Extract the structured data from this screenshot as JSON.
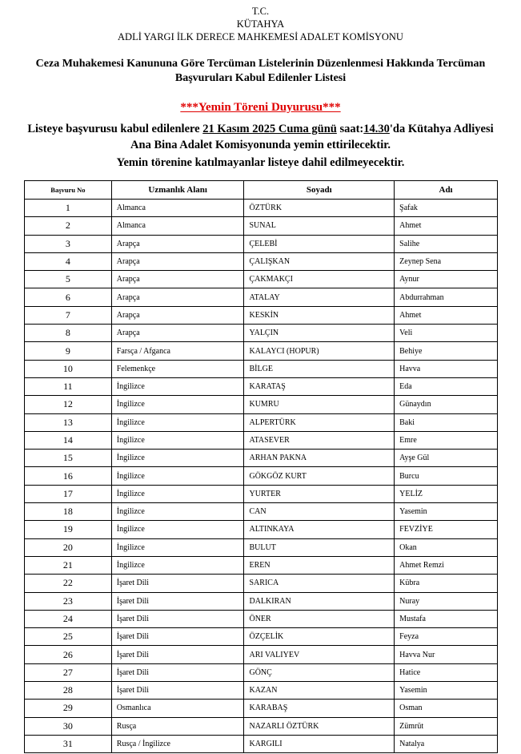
{
  "header": {
    "line1": "T.C.",
    "line2": "KÜTAHYA",
    "line3": "ADLİ YARGI İLK DERECE MAHKEMESİ ADALET KOMİSYONU"
  },
  "title": {
    "line1": "Ceza Muhakemesi Kanununa Göre Tercüman Listelerinin Düzenlenmesi Hakkında Tercüman",
    "line2": "Başvuruları Kabul Edilenler Listesi"
  },
  "notice": "***Yemin Töreni Duyurusu***",
  "announcement": {
    "part1": "Listeye başvurusu kabul edilenlere ",
    "date": "21 Kasım 2025 Cuma günü",
    "part2": " saat:",
    "time": "14.30",
    "part3": "'da Kütahya Adliyesi",
    "line2": "Ana Bina Adalet Komisyonunda yemin ettirilecektir.",
    "line3": "Yemin törenine katılmayanlar listeye dahil edilmeyecektir."
  },
  "colors": {
    "notice": "#e00000"
  },
  "table": {
    "columns": [
      "Başvuru No",
      "Uzmanlık Alanı",
      "Soyadı",
      "Adı"
    ],
    "rows": [
      [
        "1",
        "Almanca",
        "ÖZTÜRK",
        "Şafak"
      ],
      [
        "2",
        "Almanca",
        "SUNAL",
        "Ahmet"
      ],
      [
        "3",
        "Arapça",
        "ÇELEBİ",
        "Salihe"
      ],
      [
        "4",
        "Arapça",
        "ÇALIŞKAN",
        "Zeynep Sena"
      ],
      [
        "5",
        "Arapça",
        "ÇAKMAKÇI",
        "Aynur"
      ],
      [
        "6",
        "Arapça",
        "ATALAY",
        "Abdurrahman"
      ],
      [
        "7",
        "Arapça",
        "KESKİN",
        "Ahmet"
      ],
      [
        "8",
        "Arapça",
        "YALÇIN",
        "Veli"
      ],
      [
        "9",
        "Farsça / Afganca",
        "KALAYCI (HOPUR)",
        "Behiye"
      ],
      [
        "10",
        "Felemenkçe",
        "BİLGE",
        "Havva"
      ],
      [
        "11",
        "İngilizce",
        "KARATAŞ",
        "Eda"
      ],
      [
        "12",
        "İngilizce",
        "KUMRU",
        "Günaydın"
      ],
      [
        "13",
        "İngilizce",
        "ALPERTÜRK",
        "Baki"
      ],
      [
        "14",
        "İngilizce",
        "ATASEVER",
        "Emre"
      ],
      [
        "15",
        "İngilizce",
        "ARHAN PAKNA",
        "Ayşe Gül"
      ],
      [
        "16",
        "İngilizce",
        "GÖKGÖZ KURT",
        "Burcu"
      ],
      [
        "17",
        "İngilizce",
        "YURTER",
        "YELİZ"
      ],
      [
        "18",
        "İngilizce",
        "CAN",
        "Yasemin"
      ],
      [
        "19",
        "İngilizce",
        "ALTINKAYA",
        "FEVZİYE"
      ],
      [
        "20",
        "İngilizce",
        "BULUT",
        "Okan"
      ],
      [
        "21",
        "İngilizce",
        "EREN",
        "Ahmet Remzi"
      ],
      [
        "22",
        "İşaret Dili",
        "SARICA",
        "Kübra"
      ],
      [
        "23",
        "İşaret Dili",
        "DALKIRAN",
        "Nuray"
      ],
      [
        "24",
        "İşaret Dili",
        "ÖNER",
        "Mustafa"
      ],
      [
        "25",
        "İşaret Dili",
        "ÖZÇELİK",
        "Feyza"
      ],
      [
        "26",
        "İşaret Dili",
        "ARI VALIYEV",
        "Havva Nur"
      ],
      [
        "27",
        "İşaret Dili",
        "GÖNÇ",
        "Hatice"
      ],
      [
        "28",
        "İşaret Dili",
        "KAZAN",
        "Yasemin"
      ],
      [
        "29",
        "Osmanlıca",
        "KARABAŞ",
        "Osman"
      ],
      [
        "30",
        "Rusça",
        "NAZARLI ÖZTÜRK",
        "Zümrüt"
      ],
      [
        "31",
        "Rusça / İngilizce",
        "KARGILI",
        "Natalya"
      ]
    ]
  }
}
